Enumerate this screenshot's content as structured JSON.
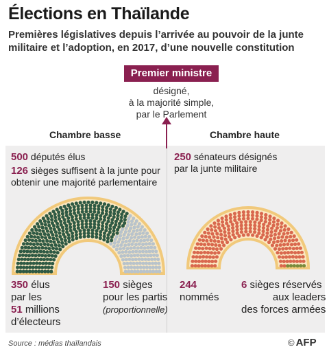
{
  "title": "Élections en Thaïlande",
  "subtitle": "Premières législatives depuis l’arrivée au pouvoir de la junte militaire et l’adoption, en 2017, d’une nouvelle constitution",
  "prime_minister": {
    "label": "Premier ministre",
    "description": [
      "désigné,",
      "à la majorité simple,",
      "par le Parlement"
    ]
  },
  "lower_house": {
    "label": "Chambre basse",
    "total_num": "500",
    "total_text": "députés élus",
    "junta_num": "126",
    "junta_text_1": "sièges suffisent à la junte pour",
    "junta_text_2": "obtenir une majorité parlementaire",
    "elected_num": "350",
    "elected_text_1": "élus",
    "elected_text_2": "par les",
    "voters_num": "51",
    "voters_text": "millions",
    "voters_text_2": "d’électeurs",
    "party_num": "150",
    "party_text": "sièges",
    "party_text_2": "pour les partis",
    "party_text_3": "(proportionnelle)",
    "seats_elected": 350,
    "seats_party": 150,
    "colors": {
      "elected": "#2f5a44",
      "party": "#b8c3cb",
      "outline": "#f1c97b"
    }
  },
  "upper_house": {
    "label": "Chambre haute",
    "total_num": "250",
    "total_text_1": "sénateurs désignés",
    "total_text_2": "par la junte militaire",
    "appointed_num": "244",
    "appointed_text": "nommés",
    "reserved_num": "6",
    "reserved_text_1": "sièges réservés",
    "reserved_text_2": "aux leaders",
    "reserved_text_3": "des forces armées",
    "seats_appointed": 244,
    "seats_reserved": 6,
    "colors": {
      "appointed": "#d9684e",
      "reserved": "#7a8a3c",
      "outline": "#f1c97b"
    }
  },
  "source": "Source : médias thaïlandais",
  "credit": "AFP",
  "accent": "#8a2050"
}
